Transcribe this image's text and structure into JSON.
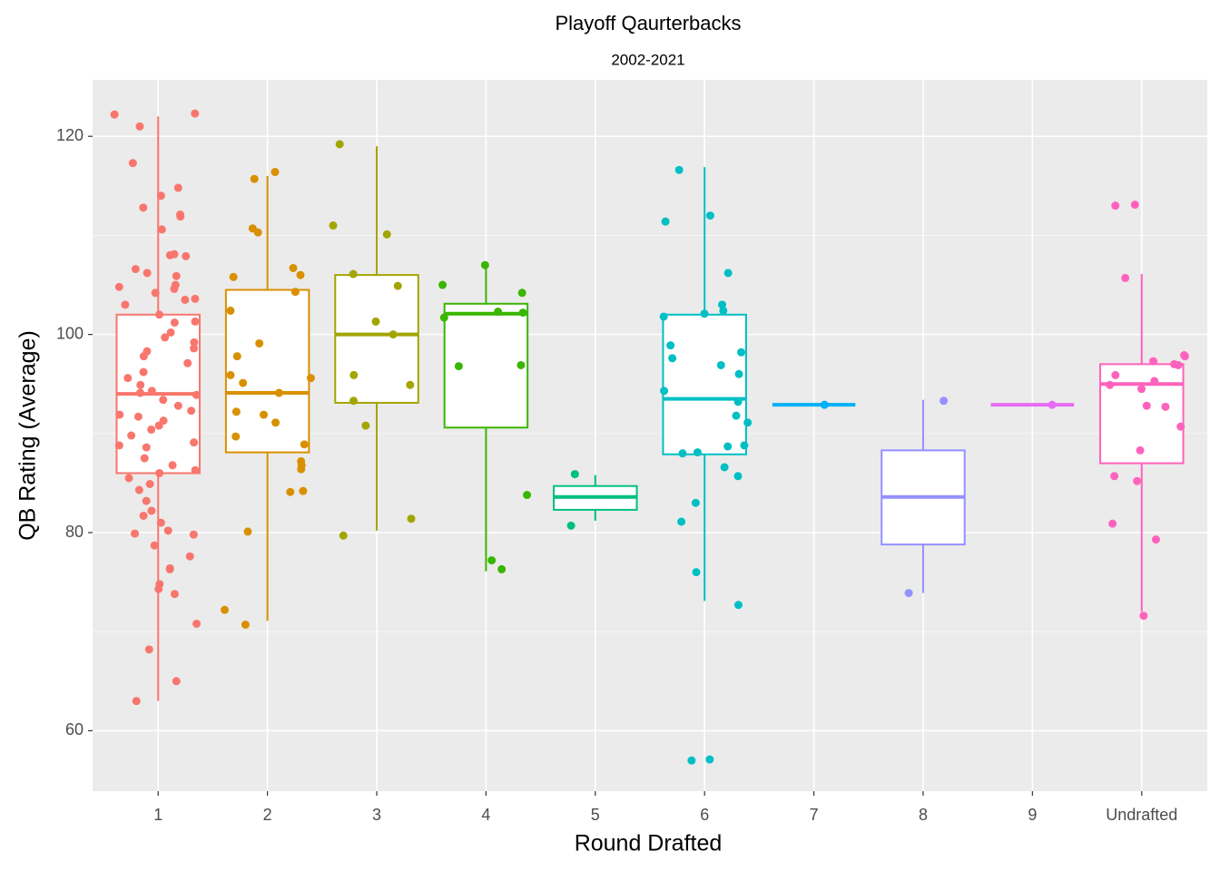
{
  "chart_data": {
    "type": "box",
    "title": "Playoff Qaurterbacks",
    "subtitle": "2002-2021",
    "x_label": "Round Drafted",
    "y_label": "QB Rating (Average)",
    "categories": [
      "1",
      "2",
      "3",
      "4",
      "5",
      "6",
      "7",
      "8",
      "9",
      "Undrafted"
    ],
    "ylim": [
      53.9,
      125.7
    ],
    "yticks": [
      60,
      80,
      100,
      120
    ],
    "yminor": [
      70,
      90,
      110
    ],
    "grid": true,
    "groups": [
      {
        "color": "#F8766D",
        "whisker_low": 63,
        "q1": 86,
        "median": 94,
        "q3": 102,
        "whisker_high": 122,
        "points": [
          122.2,
          122.3,
          121,
          117.3,
          114.8,
          114,
          112.8,
          112.1,
          111.9,
          110.6,
          108.1,
          108,
          107.9,
          106.6,
          106.2,
          105.9,
          105,
          104.8,
          104.6,
          104.2,
          103.6,
          103.5,
          103,
          102,
          101.3,
          101.2,
          100.2,
          99.7,
          99.2,
          98.6,
          98.3,
          97.8,
          97.1,
          96.2,
          95.6,
          94.9,
          94.3,
          94.1,
          93.9,
          93.4,
          92.8,
          92.3,
          91.9,
          91.7,
          91.3,
          90.8,
          90.4,
          89.8,
          89.1,
          88.8,
          88.6,
          87.5,
          86.8,
          86.3,
          86.0,
          85.5,
          84.9,
          84.3,
          83.2,
          82.2,
          81.7,
          81,
          80.2,
          79.9,
          79.8,
          78.7,
          77.6,
          76.4,
          76.3,
          74.8,
          74.3,
          73.8,
          70.8,
          68.2,
          65,
          63
        ]
      },
      {
        "color": "#D89000",
        "whisker_low": 71.1,
        "q1": 88.1,
        "median": 94.1,
        "q3": 104.5,
        "whisker_high": 116,
        "points": [
          116.4,
          115.7,
          110.7,
          110.3,
          106.7,
          106.0,
          105.8,
          104.3,
          102.4,
          99.1,
          97.8,
          95.9,
          95.6,
          95.1,
          94.1,
          92.2,
          91.9,
          91.1,
          89.7,
          88.9,
          87.2,
          86.8,
          86.4,
          84.2,
          84.1,
          80.1,
          72.2,
          70.7
        ]
      },
      {
        "color": "#A3A500",
        "whisker_low": 80.2,
        "q1": 93.1,
        "median": 100,
        "q3": 106,
        "whisker_high": 119,
        "points": [
          119.2,
          111.0,
          110.1,
          106.1,
          104.9,
          101.3,
          100,
          95.9,
          94.9,
          93.3,
          90.8,
          81.4,
          79.7
        ]
      },
      {
        "color": "#39B600",
        "whisker_low": 76.1,
        "q1": 90.6,
        "median": 102.1,
        "q3": 103.1,
        "whisker_high": 107,
        "points": [
          107,
          105,
          104.2,
          102.3,
          102.2,
          101.7,
          96.9,
          96.8,
          83.8,
          77.2,
          76.3
        ]
      },
      {
        "color": "#00BF7D",
        "whisker_low": 81.2,
        "q1": 82.3,
        "median": 83.6,
        "q3": 84.7,
        "whisker_high": 85.8,
        "points": [
          85.9,
          80.7
        ]
      },
      {
        "color": "#00BFC4",
        "whisker_low": 73.1,
        "q1": 87.9,
        "median": 93.5,
        "q3": 102,
        "whisker_high": 116.9,
        "points": [
          116.6,
          112.0,
          111.4,
          106.2,
          103.0,
          102.4,
          102.1,
          101.8,
          98.9,
          98.2,
          97.6,
          96.9,
          96.0,
          94.3,
          93.2,
          91.8,
          91.1,
          88.8,
          88.7,
          88.1,
          88.0,
          86.6,
          85.7,
          83.0,
          81.1,
          76.0,
          72.7,
          57.1,
          57.0
        ]
      },
      {
        "color": "#00B0F6",
        "whisker_low": 92.9,
        "q1": 92.9,
        "median": 92.9,
        "q3": 92.9,
        "whisker_high": 92.9,
        "points": [
          92.9
        ]
      },
      {
        "color": "#9590FF",
        "whisker_low": 73.9,
        "q1": 78.8,
        "median": 83.6,
        "q3": 88.3,
        "whisker_high": 93.4,
        "points": [
          93.3,
          73.9
        ]
      },
      {
        "color": "#E76BF3",
        "whisker_low": 92.9,
        "q1": 92.9,
        "median": 92.9,
        "q3": 92.9,
        "whisker_high": 92.9,
        "points": [
          92.9
        ]
      },
      {
        "color": "#FF62BC",
        "whisker_low": 72,
        "q1": 87,
        "median": 95,
        "q3": 97,
        "whisker_high": 106.1,
        "points": [
          113.1,
          113.0,
          105.7,
          97.9,
          97.8,
          97.3,
          97.0,
          96.9,
          95.9,
          95.3,
          94.9,
          94.5,
          92.8,
          92.7,
          90.7,
          88.3,
          85.7,
          85.2,
          80.9,
          79.3,
          71.6
        ]
      }
    ]
  }
}
